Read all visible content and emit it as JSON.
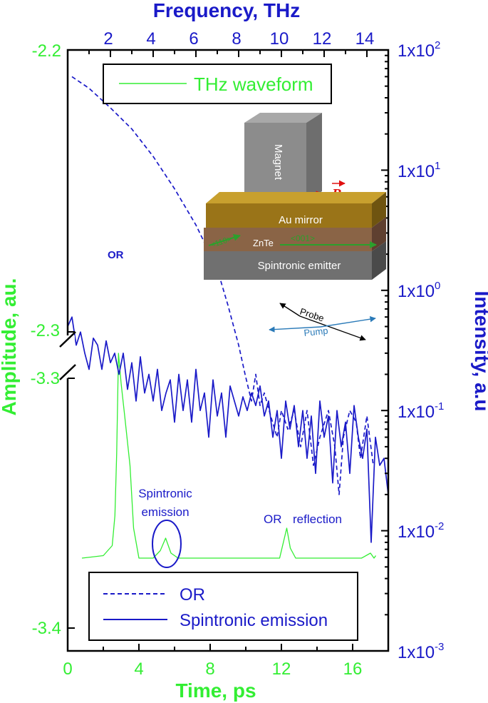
{
  "chart_data": {
    "type": "line",
    "axes": {
      "bottom": {
        "label": "Time, ps",
        "range": [
          0,
          18
        ],
        "ticks": [
          "0",
          "4",
          "8",
          "12",
          "16"
        ],
        "color": "#33ee33"
      },
      "top": {
        "label": "Frequency, THz",
        "range": [
          0,
          15
        ],
        "ticks": [
          "2",
          "4",
          "6",
          "8",
          "10",
          "12",
          "14"
        ],
        "color": "#1a1ac8"
      },
      "left": {
        "label": "Amplitude, au.",
        "ticks": [
          "-2.2",
          "-2.3",
          "-3.3",
          "-3.4"
        ],
        "broken": true,
        "color": "#33ee33"
      },
      "right": {
        "label": "Intensity, a.u",
        "scale": "log",
        "range": [
          0.001,
          100
        ],
        "ticks": [
          {
            "base": "1x10",
            "exp": "2"
          },
          {
            "base": "1x10",
            "exp": "1"
          },
          {
            "base": "1x10",
            "exp": "0"
          },
          {
            "base": "1x10",
            "exp": "-1"
          },
          {
            "base": "1x10",
            "exp": "-2"
          },
          {
            "base": "1x10",
            "exp": "-3"
          }
        ],
        "color": "#1a1ac8"
      }
    },
    "series": [
      {
        "name": "THz waveform",
        "axes": "bottom-left",
        "color": "#33ee33",
        "style": "solid",
        "x": [
          0.8,
          2.0,
          2.5,
          2.65,
          2.75,
          2.85,
          3.0,
          3.2,
          3.5,
          3.7,
          4.0,
          4.8,
          5.2,
          5.5,
          5.8,
          6.2,
          7.0,
          9.0,
          11.0,
          11.9,
          12.1,
          12.3,
          12.5,
          12.8,
          13.5,
          15.0,
          16.5,
          17.0,
          17.2,
          17.3
        ],
        "y": [
          -3.372,
          -3.371,
          -3.367,
          -3.355,
          -3.33,
          -3.29,
          -3.302,
          -3.315,
          -3.335,
          -3.36,
          -3.372,
          -3.372,
          -3.369,
          -3.364,
          -3.37,
          -3.372,
          -3.372,
          -3.372,
          -3.372,
          -3.372,
          -3.366,
          -3.36,
          -3.368,
          -3.372,
          -3.372,
          -3.372,
          -3.372,
          -3.37,
          -3.372,
          -3.371
        ]
      },
      {
        "name": "OR",
        "axes": "top-right",
        "color": "#1a1ac8",
        "style": "dashed",
        "x": [
          0.2,
          1.0,
          2.0,
          3.0,
          4.0,
          5.0,
          6.0,
          7.0,
          7.5,
          8.0,
          8.3,
          8.6,
          8.8,
          9.0,
          9.2,
          9.5,
          9.8,
          10.0,
          10.3,
          10.6,
          10.9,
          11.2,
          11.5,
          11.8,
          12.2,
          12.5,
          12.7,
          12.9,
          13.2,
          13.5,
          13.7,
          14.0,
          14.3
        ],
        "y": [
          60,
          48,
          33,
          22,
          13,
          7,
          3.5,
          1.5,
          0.75,
          0.35,
          0.2,
          0.12,
          0.2,
          0.11,
          0.14,
          0.09,
          0.06,
          0.1,
          0.07,
          0.1,
          0.05,
          0.1,
          0.035,
          0.06,
          0.1,
          0.05,
          0.02,
          0.06,
          0.1,
          0.08,
          0.04,
          0.09,
          0.035
        ]
      },
      {
        "name": "Spintronic emission",
        "axes": "top-right",
        "color": "#1a1ac8",
        "style": "solid",
        "x": [
          0.0,
          0.2,
          0.4,
          0.6,
          0.8,
          1.0,
          1.2,
          1.4,
          1.6,
          1.8,
          2.0,
          2.2,
          2.4,
          2.6,
          2.8,
          3.0,
          3.2,
          3.4,
          3.6,
          3.8,
          4.0,
          4.2,
          4.4,
          4.6,
          4.8,
          5.0,
          5.2,
          5.4,
          5.6,
          5.8,
          6.0,
          6.2,
          6.4,
          6.6,
          6.8,
          7.0,
          7.2,
          7.4,
          7.6,
          7.8,
          8.0,
          8.2,
          8.4,
          8.6,
          8.8,
          9.0,
          9.2,
          9.4,
          9.6,
          9.8,
          10.0,
          10.2,
          10.4,
          10.6,
          10.8,
          11.0,
          11.2,
          11.4,
          11.6,
          11.8,
          12.0,
          12.2,
          12.4,
          12.6,
          12.8,
          13.0,
          13.2,
          13.4,
          13.6,
          13.8,
          14.0,
          14.2,
          14.4,
          14.6,
          14.8,
          15.0
        ],
        "y": [
          0.5,
          0.6,
          0.35,
          0.45,
          0.3,
          0.22,
          0.4,
          0.35,
          0.22,
          0.38,
          0.25,
          0.3,
          0.2,
          0.3,
          0.15,
          0.25,
          0.12,
          0.28,
          0.14,
          0.2,
          0.12,
          0.22,
          0.1,
          0.14,
          0.18,
          0.08,
          0.2,
          0.1,
          0.18,
          0.08,
          0.22,
          0.1,
          0.14,
          0.06,
          0.18,
          0.09,
          0.14,
          0.06,
          0.16,
          0.12,
          0.09,
          0.13,
          0.1,
          0.14,
          0.11,
          0.16,
          0.09,
          0.12,
          0.06,
          0.1,
          0.04,
          0.12,
          0.07,
          0.11,
          0.05,
          0.1,
          0.04,
          0.09,
          0.03,
          0.12,
          0.06,
          0.09,
          0.025,
          0.1,
          0.05,
          0.08,
          0.03,
          0.11,
          0.06,
          0.04,
          0.07,
          0.008,
          0.06,
          0.035,
          0.04,
          0.02
        ]
      }
    ],
    "annotations": {
      "or_peak": "OR",
      "spintronic_line1": "Spintronic",
      "spintronic_line2": "emission",
      "or_label": "OR",
      "reflection_label": "reflection"
    },
    "inset": {
      "magnet": "Magnet",
      "b_field": "B",
      "au_mirror": "Au mirror",
      "znte": "ZnTe",
      "dir_110": "<110>",
      "dir_001": "<001>",
      "emitter": "Spintronic emitter",
      "probe": "Probe",
      "pump": "Pump"
    },
    "legends": [
      {
        "position": "top-left",
        "entries": [
          "THz waveform"
        ]
      },
      {
        "position": "bottom-left",
        "entries": [
          "OR",
          "Spintronic emission"
        ]
      }
    ]
  }
}
